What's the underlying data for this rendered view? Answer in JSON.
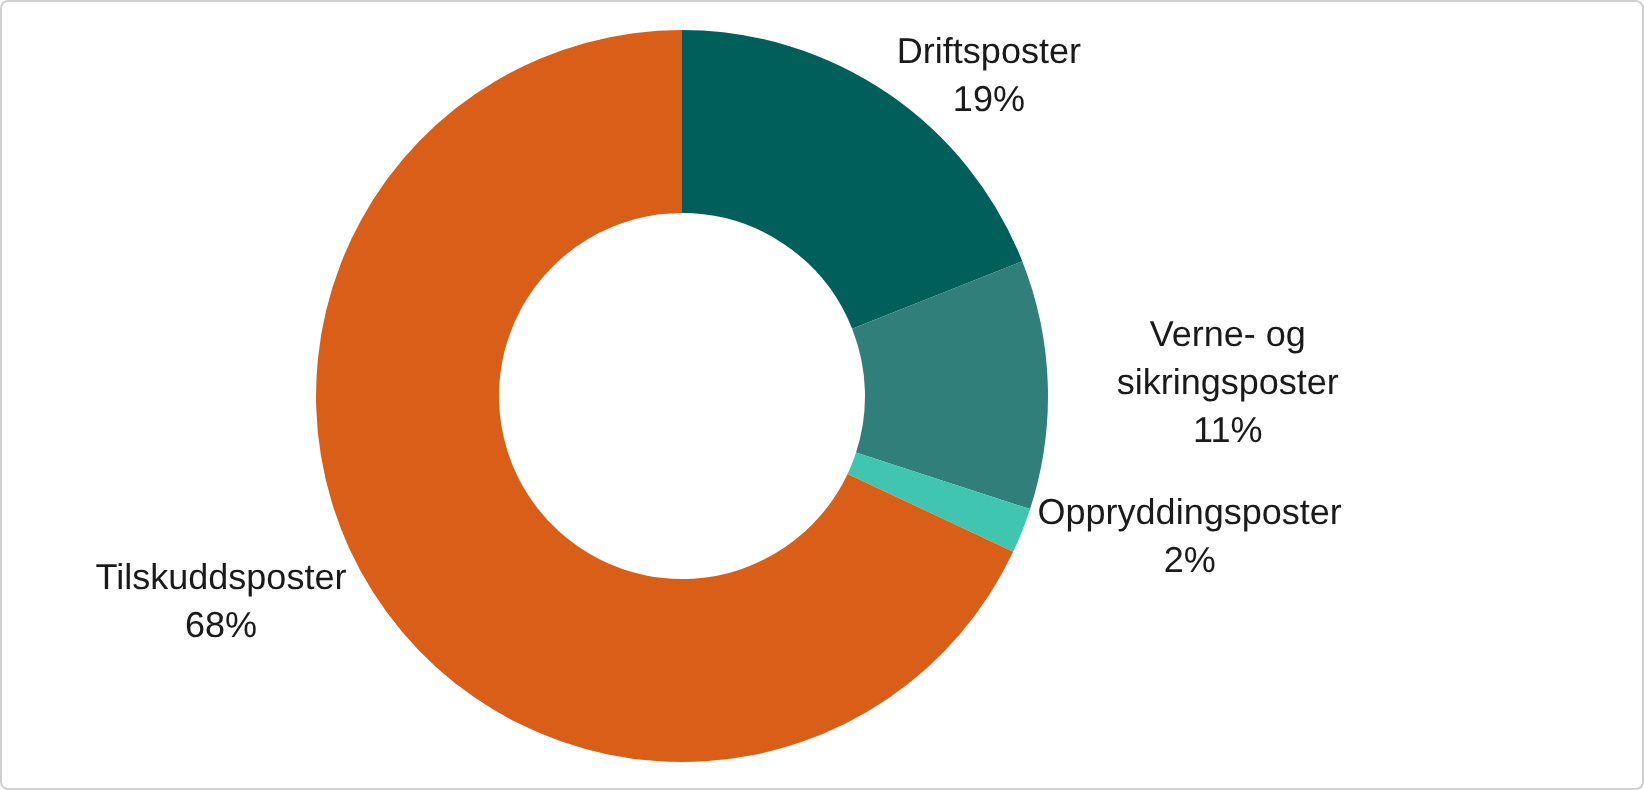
{
  "chart_data": {
    "type": "donut",
    "categories": [
      "Driftsposter",
      "Verne- og sikringsposter",
      "Oppryddingsposter",
      "Tilskuddsposter"
    ],
    "values": [
      19,
      11,
      2,
      68
    ],
    "colors": [
      "#005f5b",
      "#317f7b",
      "#40c5b0",
      "#d95f18"
    ],
    "value_labels": [
      "19%",
      "11%",
      "2%",
      "68%"
    ],
    "legend": false
  }
}
